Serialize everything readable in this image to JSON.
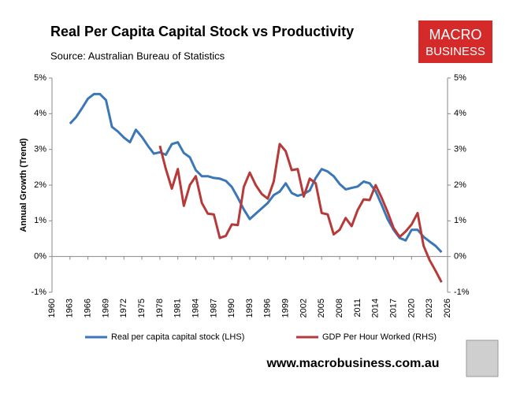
{
  "chart_data": {
    "type": "line",
    "title": "Real Per Capita Capital Stock vs Productivity",
    "subtitle": "Source: Australian Bureau of Statistics",
    "logo": [
      "MACRO",
      "BUSINESS"
    ],
    "website": "www.macrobusiness.com.au",
    "ylabel": "Annual Growth (Trend)",
    "x": [
      1963,
      1964,
      1965,
      1966,
      1967,
      1968,
      1969,
      1970,
      1971,
      1972,
      1973,
      1974,
      1975,
      1976,
      1977,
      1978,
      1979,
      1980,
      1981,
      1982,
      1983,
      1984,
      1985,
      1986,
      1987,
      1988,
      1989,
      1990,
      1991,
      1992,
      1993,
      1994,
      1995,
      1996,
      1997,
      1998,
      1999,
      2000,
      2001,
      2002,
      2003,
      2004,
      2005,
      2006,
      2007,
      2008,
      2009,
      2010,
      2011,
      2012,
      2013,
      2014,
      2015,
      2016,
      2017,
      2018,
      2019,
      2020,
      2021,
      2022,
      2023,
      2024,
      2025
    ],
    "series": [
      {
        "name": "Real per capita capital stock (LHS)",
        "color": "#3b76b6",
        "values": [
          3.72,
          3.9,
          4.15,
          4.42,
          4.55,
          4.55,
          4.38,
          3.63,
          3.5,
          3.33,
          3.2,
          3.55,
          3.35,
          3.1,
          2.88,
          2.92,
          2.85,
          3.15,
          3.2,
          2.9,
          2.78,
          2.42,
          2.25,
          2.25,
          2.2,
          2.18,
          2.12,
          1.95,
          1.65,
          1.32,
          1.05,
          1.2,
          1.35,
          1.5,
          1.72,
          1.82,
          2.05,
          1.78,
          1.7,
          1.75,
          1.85,
          2.2,
          2.45,
          2.38,
          2.25,
          2.03,
          1.88,
          1.92,
          1.96,
          2.1,
          2.05,
          1.83,
          1.45,
          1.05,
          0.75,
          0.52,
          0.45,
          0.75,
          0.75,
          0.55,
          0.42,
          0.3,
          0.12
        ]
      },
      {
        "name": "GDP Per Hour Worked (RHS)",
        "color": "#b73a3a",
        "axis": "y2",
        "values": [
          null,
          null,
          null,
          null,
          null,
          null,
          null,
          null,
          null,
          null,
          null,
          null,
          null,
          null,
          null,
          3.1,
          2.45,
          1.9,
          2.45,
          1.42,
          2.0,
          2.25,
          1.5,
          1.2,
          1.18,
          0.52,
          0.58,
          0.9,
          0.88,
          1.95,
          2.35,
          2.0,
          1.75,
          1.62,
          2.1,
          3.15,
          2.95,
          2.42,
          2.45,
          1.68,
          2.18,
          2.05,
          1.22,
          1.18,
          0.62,
          0.75,
          1.08,
          0.85,
          1.3,
          1.6,
          1.58,
          2.0,
          1.65,
          1.25,
          0.8,
          0.55,
          0.7,
          0.9,
          1.22,
          0.3,
          -0.1,
          -0.4,
          -0.72
        ]
      }
    ],
    "xlim": [
      1960,
      2026
    ],
    "xticks": [
      1960,
      1963,
      1966,
      1969,
      1972,
      1975,
      1978,
      1981,
      1984,
      1987,
      1990,
      1993,
      1996,
      1999,
      2002,
      2005,
      2008,
      2011,
      2014,
      2017,
      2020,
      2023,
      2026
    ],
    "ylim": [
      -1,
      5
    ],
    "yticks": [
      {
        "value": -1,
        "label": "-1%"
      },
      {
        "value": 0,
        "label": "0%"
      },
      {
        "value": 1,
        "label": "1%"
      },
      {
        "value": 2,
        "label": "2%"
      },
      {
        "value": 3,
        "label": "3%"
      },
      {
        "value": 4,
        "label": "4%"
      },
      {
        "value": 5,
        "label": "5%"
      }
    ],
    "y2lim": [
      -1,
      5
    ],
    "y2ticks": [
      {
        "value": -1,
        "label": "-1%"
      },
      {
        "value": 0,
        "label": "0%"
      },
      {
        "value": 1,
        "label": "1%"
      },
      {
        "value": 2,
        "label": "2%"
      },
      {
        "value": 3,
        "label": "3%"
      },
      {
        "value": 4,
        "label": "4%"
      },
      {
        "value": 5,
        "label": "5%"
      }
    ]
  }
}
